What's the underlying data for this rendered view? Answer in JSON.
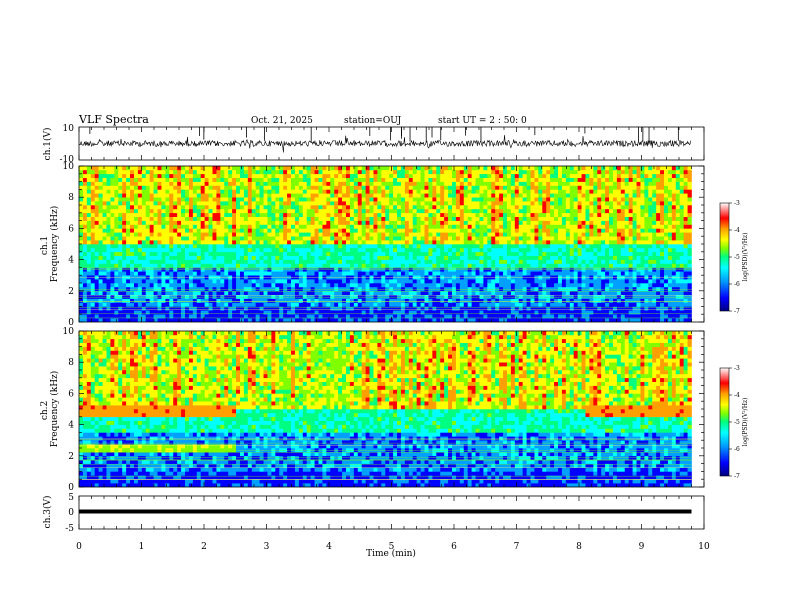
{
  "header": {
    "title": "VLF Spectra",
    "date": "Oct. 21, 2025",
    "station": "station=OUJ",
    "start_ut": "start UT =  2 : 50: 0"
  },
  "chart_data": [
    {
      "type": "line",
      "id": "ch1-waveform",
      "ylabel": "ch.1(V)",
      "ylim": [
        -10,
        10
      ],
      "y_ticks": [
        "10",
        "-10"
      ],
      "color": "#000000"
    },
    {
      "type": "heatmap",
      "id": "ch1-spectrogram",
      "ylabel": "ch.1 Frequency (kHz)",
      "ylim": [
        0,
        10
      ],
      "y_ticks": [
        "0",
        "2",
        "4",
        "6",
        "8",
        "10"
      ],
      "colorbar": {
        "label": "log(PSD)(V²/Hz)",
        "range": [
          -7,
          -3
        ],
        "ticks": [
          "-3",
          "-4",
          "-5",
          "-6",
          "-7"
        ]
      }
    },
    {
      "type": "heatmap",
      "id": "ch2-spectrogram",
      "ylabel": "ch.2 Frequency (kHz)",
      "ylim": [
        0,
        10
      ],
      "y_ticks": [
        "0",
        "2",
        "4",
        "6",
        "8",
        "10"
      ],
      "colorbar": {
        "label": "log(PSD)(V²/Hz)",
        "range": [
          -7,
          -3
        ],
        "ticks": [
          "-3",
          "-4",
          "-5",
          "-6",
          "-7"
        ]
      }
    },
    {
      "type": "line",
      "id": "ch3-waveform",
      "ylabel": "ch.3(V)",
      "ylim": [
        -5,
        5
      ],
      "y_ticks": [
        "5",
        "0",
        "-5"
      ],
      "series": [
        {
          "x": [
            0,
            9.8
          ],
          "y": [
            0,
            0
          ]
        }
      ],
      "color": "#000000"
    }
  ],
  "x_axis": {
    "label": "Time (min)",
    "range": [
      0,
      10
    ],
    "ticks": [
      "0",
      "1",
      "2",
      "3",
      "4",
      "5",
      "6",
      "7",
      "8",
      "9",
      "10"
    ],
    "data_end": 9.8
  },
  "colors": {
    "colormap": [
      "#000080",
      "#0000ff",
      "#00a0ff",
      "#00ffff",
      "#00ff80",
      "#80ff00",
      "#ffff00",
      "#ffa000",
      "#ff0000",
      "#ffffff"
    ]
  }
}
